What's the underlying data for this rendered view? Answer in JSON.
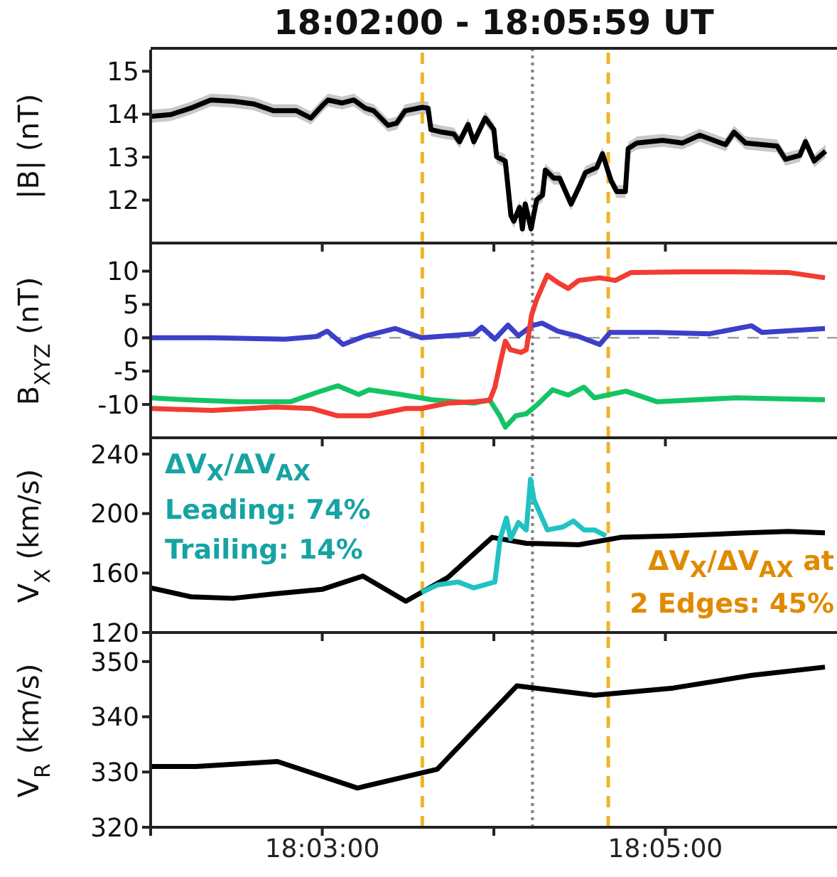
{
  "chart_data": [
    {
      "type": "line",
      "title": "18:02:00 - 18:05:59 UT",
      "ylabel": "|B| (nT)",
      "xlim": [
        18.03333,
        18.1
      ],
      "xticks": [
        {
          "value": 18.03333,
          "label": null
        },
        {
          "value": 18.05,
          "label": null
        },
        {
          "value": 18.06667,
          "label": null
        },
        {
          "value": 18.08333,
          "label": null
        }
      ],
      "ylim": [
        11,
        15.5
      ],
      "yticks": [
        12,
        13,
        14,
        15
      ],
      "tick_labels": "y",
      "ref_lines": [
        {
          "axis": "x",
          "value": 18.05972,
          "color": "#f0b428",
          "line_style": "dashed"
        },
        {
          "axis": "x",
          "value": 18.07042,
          "color": "#808080",
          "line_style": "dotted"
        },
        {
          "axis": "x",
          "value": 18.07778,
          "color": "#f0b428",
          "line_style": "dashed"
        }
      ],
      "series": [
        {
          "color": "#000000",
          "x": [
            18.03333,
            18.03528,
            18.03722,
            18.03917,
            18.04139,
            18.04333,
            18.04528,
            18.0475,
            18.04889,
            18.05,
            18.05056,
            18.05194,
            18.05306,
            18.05417,
            18.055,
            18.05639,
            18.05722,
            18.05806,
            18.05972,
            18.06028,
            18.06056,
            18.06167,
            18.06278,
            18.06333,
            18.06417,
            18.06472,
            18.06583,
            18.06667,
            18.06694,
            18.06778,
            18.06833,
            18.06861,
            18.06917,
            18.06944,
            18.06972,
            18.07028,
            18.07083,
            18.07139,
            18.07167,
            18.0725,
            18.07306,
            18.07417,
            18.075,
            18.07556,
            18.07667,
            18.07722,
            18.07806,
            18.07861,
            18.07944,
            18.07972,
            18.08056,
            18.08306,
            18.085,
            18.08667,
            18.08917,
            18.09,
            18.09111,
            18.09417,
            18.095,
            18.09639,
            18.09694,
            18.09778,
            18.09889
          ],
          "values": [
            13.95,
            13.99,
            14.14,
            14.33,
            14.3,
            14.24,
            14.08,
            14.08,
            13.91,
            14.2,
            14.33,
            14.26,
            14.33,
            14.14,
            14.08,
            13.74,
            13.79,
            14.08,
            14.16,
            14.14,
            13.64,
            13.58,
            13.54,
            13.36,
            13.76,
            13.36,
            13.91,
            13.64,
            13.01,
            12.91,
            11.64,
            11.51,
            11.83,
            11.33,
            11.91,
            11.33,
            12.01,
            12.11,
            12.7,
            12.51,
            12.51,
            11.91,
            12.33,
            12.64,
            12.76,
            13.08,
            12.45,
            12.2,
            12.2,
            13.2,
            13.33,
            13.39,
            13.33,
            13.51,
            13.29,
            13.58,
            13.33,
            13.26,
            12.95,
            13.04,
            13.36,
            12.91,
            13.14
          ],
          "lower": [
            13.8,
            13.84,
            13.99,
            14.18,
            14.15,
            14.09,
            13.93,
            13.93,
            13.76,
            14.05,
            14.18,
            14.11,
            14.18,
            13.99,
            13.93,
            13.59,
            13.64,
            13.93,
            14.01,
            13.99,
            13.49,
            13.43,
            13.39,
            13.21,
            13.61,
            13.21,
            13.76,
            13.49,
            12.86,
            12.76,
            11.49,
            11.36,
            11.68,
            11.18,
            11.76,
            11.18,
            11.86,
            11.96,
            12.55,
            12.36,
            12.36,
            11.76,
            12.18,
            12.49,
            12.61,
            12.93,
            12.3,
            12.05,
            12.05,
            13.05,
            13.18,
            13.24,
            13.18,
            13.36,
            13.14,
            13.43,
            13.18,
            13.11,
            12.8,
            12.89,
            13.21,
            12.76,
            12.99
          ],
          "upper": [
            14.1,
            14.14,
            14.29,
            14.48,
            14.45,
            14.39,
            14.23,
            14.23,
            14.06,
            14.35,
            14.48,
            14.41,
            14.48,
            14.29,
            14.23,
            13.89,
            13.94,
            14.23,
            14.31,
            14.29,
            13.79,
            13.73,
            13.69,
            13.51,
            13.91,
            13.51,
            14.06,
            13.79,
            13.16,
            13.06,
            11.79,
            11.66,
            11.98,
            11.48,
            12.06,
            11.48,
            12.16,
            12.26,
            12.85,
            12.66,
            12.66,
            12.06,
            12.48,
            12.79,
            12.91,
            13.23,
            12.6,
            12.35,
            12.35,
            13.35,
            13.48,
            13.54,
            13.48,
            13.66,
            13.44,
            13.73,
            13.48,
            13.41,
            13.1,
            13.19,
            13.51,
            13.06,
            13.29
          ]
        }
      ]
    },
    {
      "type": "line",
      "ylabel": "B$_{XYZ}$ (nT)",
      "xlim": [
        18.03333,
        18.1
      ],
      "xticks": [
        {
          "value": 18.03333,
          "label": null
        },
        {
          "value": 18.05,
          "label": null
        },
        {
          "value": 18.06667,
          "label": null
        },
        {
          "value": 18.08333,
          "label": null
        }
      ],
      "ylim": [
        -15,
        14
      ],
      "yticks": [
        -10,
        -5,
        0,
        5,
        10
      ],
      "tick_labels": "y",
      "ref_lines": [
        {
          "axis": "y",
          "value": 0,
          "color": "#a0a0a0",
          "line_style": "dashed"
        },
        {
          "axis": "x",
          "value": 18.05972,
          "color": "#f0b428",
          "line_style": "dashed"
        },
        {
          "axis": "x",
          "value": 18.07042,
          "color": "#808080",
          "line_style": "dotted"
        },
        {
          "axis": "x",
          "value": 18.07778,
          "color": "#f0b428",
          "line_style": "dashed"
        }
      ],
      "series": [
        {
          "color": "#3c3fc8",
          "x": [
            18.03333,
            18.03928,
            18.04641,
            18.04946,
            18.05048,
            18.05201,
            18.05404,
            18.0571,
            18.05964,
            18.06473,
            18.06549,
            18.06677,
            18.06804,
            18.06906,
            18.07033,
            18.07135,
            18.07287,
            18.07491,
            18.07695,
            18.07796,
            18.08254,
            18.08763,
            18.0917,
            18.09272,
            18.09883
          ],
          "values": [
            0,
            0,
            -0.2,
            0.2,
            1.0,
            -1.0,
            0.2,
            1.4,
            0,
            0.6,
            1.6,
            -0.2,
            1.9,
            0.3,
            1.8,
            2.2,
            1.0,
            0.2,
            -1.0,
            0.8,
            0.8,
            0.6,
            1.8,
            0.8,
            1.4
          ]
        },
        {
          "color": "#14c464",
          "x": [
            18.03333,
            18.03674,
            18.04183,
            18.04692,
            18.04946,
            18.0515,
            18.05353,
            18.05455,
            18.05761,
            18.06066,
            18.06473,
            18.06626,
            18.06728,
            18.06778,
            18.0688,
            18.06982,
            18.07084,
            18.07237,
            18.07389,
            18.07542,
            18.07644,
            18.07949,
            18.08254,
            18.09018,
            18.09883
          ],
          "values": [
            -9.0,
            -9.3,
            -9.6,
            -9.6,
            -8.2,
            -7.2,
            -8.5,
            -7.8,
            -8.5,
            -9.3,
            -9.8,
            -9.3,
            -11.8,
            -13.4,
            -11.7,
            -11.4,
            -10.1,
            -7.8,
            -8.6,
            -7.4,
            -9.0,
            -8.0,
            -9.6,
            -9.0,
            -9.3
          ]
        },
        {
          "color": "#f23c32",
          "x": [
            18.03333,
            18.03928,
            18.04539,
            18.04895,
            18.0515,
            18.05455,
            18.05812,
            18.05964,
            18.06219,
            18.06473,
            18.06626,
            18.06677,
            18.06728,
            18.06778,
            18.06829,
            18.06931,
            18.06982,
            18.07033,
            18.07084,
            18.07186,
            18.07287,
            18.07389,
            18.07491,
            18.07695,
            18.07847,
            18.08,
            18.08509,
            18.09018,
            18.09527,
            18.09883
          ],
          "values": [
            -10.6,
            -10.9,
            -10.4,
            -10.6,
            -11.7,
            -11.7,
            -10.6,
            -10.6,
            -9.8,
            -9.6,
            -9.4,
            -7.4,
            -3.8,
            -0.5,
            -1.8,
            -2.2,
            -1.8,
            3.4,
            5.8,
            9.4,
            8.3,
            7.4,
            8.6,
            9.0,
            8.6,
            9.8,
            9.9,
            9.9,
            9.8,
            9.0
          ]
        }
      ]
    },
    {
      "type": "line",
      "ylabel": "V$_{X}$ (km/s)",
      "xlim": [
        18.03333,
        18.1
      ],
      "xticks": [
        {
          "value": 18.03333,
          "label": null
        },
        {
          "value": 18.05,
          "label": null
        },
        {
          "value": 18.06667,
          "label": null
        },
        {
          "value": 18.08333,
          "label": null
        }
      ],
      "ylim": [
        120,
        250
      ],
      "yticks": [
        120,
        160,
        200,
        240
      ],
      "tick_labels": "y",
      "annotations": [
        "ΔV$_{X}$/ΔV$_{AX}$",
        "Leading: 74%",
        "Trailing: 14%",
        "ΔV$_{X}$/ΔV$_{AX}$ at",
        "2 Edges: 45%"
      ],
      "ref_lines": [
        {
          "axis": "x",
          "value": 18.05972,
          "color": "#f0b428",
          "line_style": "dashed"
        },
        {
          "axis": "x",
          "value": 18.07042,
          "color": "#808080",
          "line_style": "dotted"
        },
        {
          "axis": "x",
          "value": 18.07778,
          "color": "#f0b428",
          "line_style": "dashed"
        }
      ],
      "series": [
        {
          "color": "#000000",
          "x": [
            18.03333,
            18.03725,
            18.04132,
            18.04539,
            18.04997,
            18.05394,
            18.05812,
            18.06219,
            18.06651,
            18.06982,
            18.07491,
            18.07898,
            18.08407,
            18.0912,
            18.09527,
            18.09883
          ],
          "values": [
            150,
            144,
            143,
            146,
            149,
            158,
            141,
            157,
            184,
            180,
            179,
            184,
            185,
            187,
            188,
            187
          ]
        },
        {
          "color": "#20c2c2",
          "x": [
            18.05964,
            18.06117,
            18.0632,
            18.06473,
            18.06626,
            18.06677,
            18.06728,
            18.06789,
            18.06829,
            18.06906,
            18.06982,
            18.07023,
            18.07058,
            18.07186,
            18.07338,
            18.0744,
            18.07542,
            18.07644,
            18.07756
          ],
          "values": [
            147,
            152,
            154,
            150,
            153,
            154,
            183,
            197,
            183,
            194,
            189,
            223,
            209,
            189,
            191,
            195,
            189,
            189,
            185
          ]
        }
      ]
    },
    {
      "type": "line",
      "ylabel": "V$_{R}$ (km/s)",
      "xlim": [
        18.03333,
        18.1
      ],
      "xticks": [
        {
          "value": 18.03333,
          "label": null
        },
        {
          "value": 18.05,
          "label": "18:03:00"
        },
        {
          "value": 18.06667,
          "label": null
        },
        {
          "value": 18.08333,
          "label": "18:05:00"
        }
      ],
      "ylim": [
        320,
        355
      ],
      "yticks": [
        320,
        330,
        340,
        350
      ],
      "ref_lines": [
        {
          "axis": "x",
          "value": 18.05972,
          "color": "#f0b428",
          "line_style": "dashed"
        },
        {
          "axis": "x",
          "value": 18.07042,
          "color": "#808080",
          "line_style": "dotted"
        },
        {
          "axis": "x",
          "value": 18.07778,
          "color": "#f0b428",
          "line_style": "dashed"
        }
      ],
      "series": [
        {
          "color": "#000000",
          "x": [
            18.03333,
            18.03776,
            18.04565,
            18.05343,
            18.06117,
            18.0689,
            18.07644,
            18.08407,
            18.0917,
            18.09883
          ],
          "values": [
            331.0,
            331.0,
            331.9,
            327.1,
            330.5,
            345.6,
            343.9,
            345.2,
            347.5,
            349.0
          ]
        }
      ]
    }
  ]
}
